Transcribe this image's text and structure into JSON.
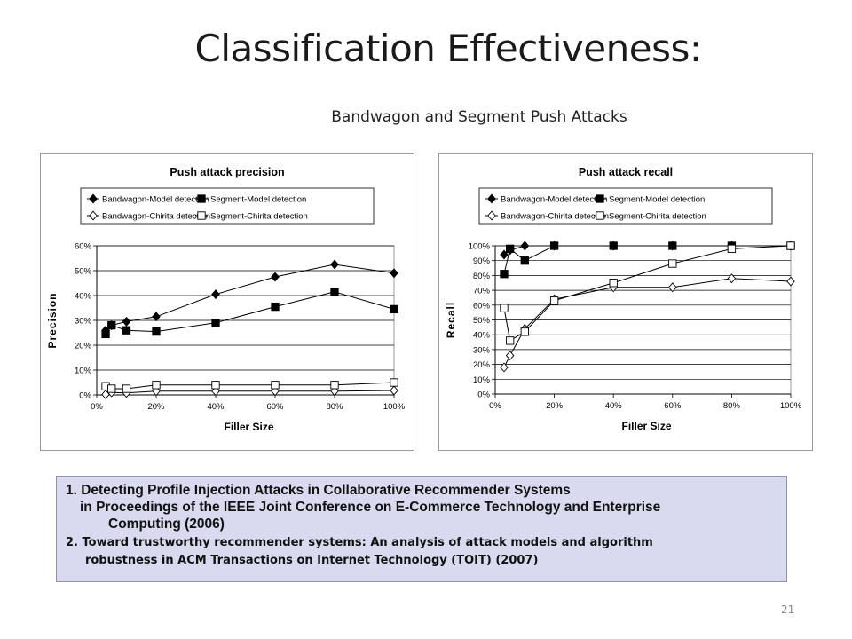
{
  "slide": {
    "title": "Classification Effectiveness:",
    "subtitle": "Bandwagon and Segment Push Attacks",
    "page_number": "21"
  },
  "references": {
    "ref1_line1": "1. Detecting Profile Injection Attacks in Collaborative Recommender Systems",
    "ref1_line2": "in Proceedings of the IEEE Joint Conference on E-Commerce Technology and Enterprise",
    "ref1_line3": "Computing (2006)",
    "ref2_line1": "2. Toward trustworthy recommender systems: An analysis of attack models and algorithm",
    "ref2_line2": "robustness in ACM Transactions on Internet Technology (TOIT)  (2007)"
  },
  "chart_data": [
    {
      "type": "line",
      "title": "Push attack precision",
      "xlabel": "Filler Size",
      "ylabel": "Precision",
      "xlim": [
        0,
        100
      ],
      "ylim": [
        0,
        60
      ],
      "x_ticks": [
        "0%",
        "20%",
        "40%",
        "60%",
        "80%",
        "100%"
      ],
      "y_ticks": [
        "0%",
        "10%",
        "20%",
        "30%",
        "40%",
        "50%",
        "60%"
      ],
      "grid": "horizontal",
      "legend_position": "top",
      "series": [
        {
          "name": "Bandwagon-Model detection",
          "marker": "filled-diamond",
          "x": [
            3,
            5,
            10,
            20,
            40,
            60,
            80,
            100
          ],
          "y": [
            26,
            28,
            29.5,
            31.5,
            40.5,
            47.5,
            52.5,
            49
          ]
        },
        {
          "name": "Segment-Model detection",
          "marker": "filled-square",
          "x": [
            3,
            5,
            10,
            20,
            40,
            60,
            80,
            100
          ],
          "y": [
            24.5,
            28,
            26,
            25.5,
            29,
            35.5,
            41.5,
            34.5
          ]
        },
        {
          "name": "Bandwagon-Chirita detection",
          "marker": "open-diamond",
          "x": [
            3,
            5,
            10,
            20,
            40,
            60,
            80,
            100
          ],
          "y": [
            0.2,
            1,
            0.8,
            1.5,
            1.5,
            1.5,
            1.5,
            1.8
          ]
        },
        {
          "name": "Segment-Chirita detection",
          "marker": "open-square",
          "x": [
            3,
            5,
            10,
            20,
            40,
            60,
            80,
            100
          ],
          "y": [
            3.5,
            2.5,
            2.5,
            4,
            4,
            4,
            4,
            5
          ]
        }
      ]
    },
    {
      "type": "line",
      "title": "Push attack recall",
      "xlabel": "Filler Size",
      "ylabel": "Recall",
      "xlim": [
        0,
        100
      ],
      "ylim": [
        0,
        100
      ],
      "x_ticks": [
        "0%",
        "20%",
        "40%",
        "60%",
        "80%",
        "100%"
      ],
      "y_ticks": [
        "0%",
        "10%",
        "20%",
        "30%",
        "40%",
        "50%",
        "60%",
        "70%",
        "80%",
        "90%",
        "100%"
      ],
      "grid": "horizontal",
      "legend_position": "top",
      "series": [
        {
          "name": "Bandwagon-Model detection",
          "marker": "filled-diamond",
          "x": [
            3,
            5,
            10,
            20,
            40,
            60,
            80,
            100
          ],
          "y": [
            94,
            97,
            100,
            100,
            100,
            100,
            100,
            100
          ]
        },
        {
          "name": "Segment-Model detection",
          "marker": "filled-square",
          "x": [
            3,
            5,
            10,
            20,
            40,
            60,
            80,
            100
          ],
          "y": [
            81,
            98,
            90,
            100,
            100,
            100,
            100,
            100
          ]
        },
        {
          "name": "Bandwagon-Chirita detection",
          "marker": "open-diamond",
          "x": [
            3,
            5,
            10,
            20,
            40,
            60,
            80,
            100
          ],
          "y": [
            18,
            26,
            44,
            64,
            72,
            72,
            78,
            76
          ]
        },
        {
          "name": "Segment-Chirita detection",
          "marker": "open-square",
          "x": [
            3,
            5,
            10,
            20,
            40,
            60,
            80,
            100
          ],
          "y": [
            58,
            36,
            42,
            63,
            75,
            88,
            98,
            100
          ]
        }
      ]
    }
  ]
}
